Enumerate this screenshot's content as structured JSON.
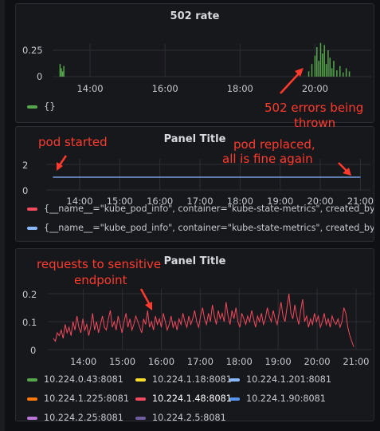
{
  "panels": [
    {
      "title": "502 rate",
      "legend": [
        {
          "label": "{}",
          "color": "#56a64b"
        }
      ],
      "annotation": [
        "502 errors being",
        "thrown"
      ]
    },
    {
      "title": "Panel Title",
      "legend": [
        {
          "label": "{__name__=\"kube_pod_info\", container=\"kube-state-metrics\", created_by_kin",
          "color": "#f2495c"
        },
        {
          "label": "{__name__=\"kube_pod_info\", container=\"kube-state-metrics\", created_by_kin",
          "color": "#8ab8ff"
        }
      ],
      "annotations": {
        "left": "pod started",
        "right": [
          "pod replaced,",
          "all is fine again"
        ]
      }
    },
    {
      "title": "Panel Title",
      "legend": [
        {
          "label": "10.224.0.43:8081",
          "color": "#56a64b"
        },
        {
          "label": "10.224.1.18:8081",
          "color": "#fade2a"
        },
        {
          "label": "10.224.1.201:8081",
          "color": "#8ab8ff"
        },
        {
          "label": "10.224.1.225:8081",
          "color": "#ff780a"
        },
        {
          "label": "10.224.1.48:8081",
          "color": "#f2495c"
        },
        {
          "label": "10.224.1.90:8081",
          "color": "#5794f2"
        },
        {
          "label": "10.224.2.25:8081",
          "color": "#b877d9"
        },
        {
          "label": "10.224.2.5:8081",
          "color": "#705da0"
        }
      ],
      "annotation": [
        "requests to sensitive",
        "endpoint"
      ]
    }
  ],
  "chart_data": [
    {
      "type": "bar",
      "title": "502 rate",
      "x_ticks": [
        "14:00",
        "16:00",
        "18:00",
        "20:00"
      ],
      "y_ticks": [
        "0.25",
        "0"
      ],
      "series": [
        {
          "name": "{}",
          "color": "#56a64b",
          "points": [
            [
              "13:12",
              0.12
            ],
            [
              "13:14",
              0.08
            ],
            [
              "13:16",
              0.05
            ],
            [
              "13:18",
              0.1
            ],
            [
              "19:50",
              0.05
            ],
            [
              "19:55",
              0.12
            ],
            [
              "20:00",
              0.2
            ],
            [
              "20:03",
              0.28
            ],
            [
              "20:06",
              0.15
            ],
            [
              "20:09",
              0.32
            ],
            [
              "20:12",
              0.22
            ],
            [
              "20:15",
              0.3
            ],
            [
              "20:18",
              0.12
            ],
            [
              "20:21",
              0.25
            ],
            [
              "20:24",
              0.18
            ],
            [
              "20:27",
              0.08
            ],
            [
              "20:30",
              0.15
            ],
            [
              "20:35",
              0.06
            ],
            [
              "20:40",
              0.1
            ],
            [
              "20:45",
              0.04
            ],
            [
              "20:50",
              0.08
            ],
            [
              "20:55",
              0.05
            ]
          ]
        }
      ]
    },
    {
      "type": "line",
      "title": "Panel Title",
      "x_ticks": [
        "14:00",
        "15:00",
        "16:00",
        "17:00",
        "18:00",
        "19:00",
        "20:00",
        "21:00"
      ],
      "y_ticks": [
        "2",
        "0"
      ],
      "series": [
        {
          "color": "#8ab8ff",
          "x_start": "13:20",
          "x_end": "21:00",
          "value": 1
        }
      ]
    },
    {
      "type": "line",
      "title": "Panel Title",
      "x_ticks": [
        "14:00",
        "15:00",
        "16:00",
        "17:00",
        "18:00",
        "19:00",
        "20:00",
        "21:00"
      ],
      "y_ticks": [
        "0.2",
        "0.1",
        "0"
      ],
      "series": [
        {
          "name": "10.224.1.48:8081",
          "color": "#f2495c",
          "values": [
            0.04,
            0.03,
            0.06,
            0.05,
            0.07,
            0.04,
            0.09,
            0.06,
            0.08,
            0.05,
            0.1,
            0.07,
            0.12,
            0.08,
            0.06,
            0.11,
            0.07,
            0.09,
            0.05,
            0.08,
            0.13,
            0.07,
            0.1,
            0.06,
            0.09,
            0.12,
            0.08,
            0.07,
            0.11,
            0.14,
            0.08,
            0.1,
            0.07,
            0.12,
            0.09,
            0.06,
            0.1,
            0.13,
            0.08,
            0.11,
            0.07,
            0.09,
            0.12,
            0.1,
            0.08,
            0.06,
            0.11,
            0.09,
            0.14,
            0.08,
            0.1,
            0.07,
            0.12,
            0.09,
            0.11,
            0.08,
            0.13,
            0.1,
            0.07,
            0.09,
            0.12,
            0.08,
            0.1,
            0.07,
            0.11,
            0.09,
            0.13,
            0.1,
            0.08,
            0.12,
            0.09,
            0.11,
            0.14,
            0.1,
            0.08,
            0.12,
            0.15,
            0.11,
            0.09,
            0.13,
            0.1,
            0.16,
            0.12,
            0.09,
            0.14,
            0.11,
            0.13,
            0.1,
            0.17,
            0.12,
            0.09,
            0.14,
            0.11,
            0.15,
            0.1,
            0.08,
            0.13,
            0.11,
            0.09,
            0.12,
            0.1,
            0.14,
            0.11,
            0.08,
            0.12,
            0.1,
            0.13,
            0.09,
            0.11,
            0.15,
            0.12,
            0.1,
            0.14,
            0.11,
            0.09,
            0.13,
            0.17,
            0.12,
            0.1,
            0.15,
            0.2,
            0.13,
            0.11,
            0.16,
            0.12,
            0.09,
            0.14,
            0.18,
            0.1,
            0.12,
            0.08,
            0.11,
            0.09,
            0.13,
            0.1,
            0.12,
            0.08,
            0.1,
            0.13,
            0.09,
            0.11,
            0.08,
            0.12,
            0.1,
            0.09,
            0.11,
            0.08,
            0.1,
            0.15,
            0.13,
            0.08,
            0.05,
            0.03,
            0.01
          ]
        }
      ]
    }
  ]
}
